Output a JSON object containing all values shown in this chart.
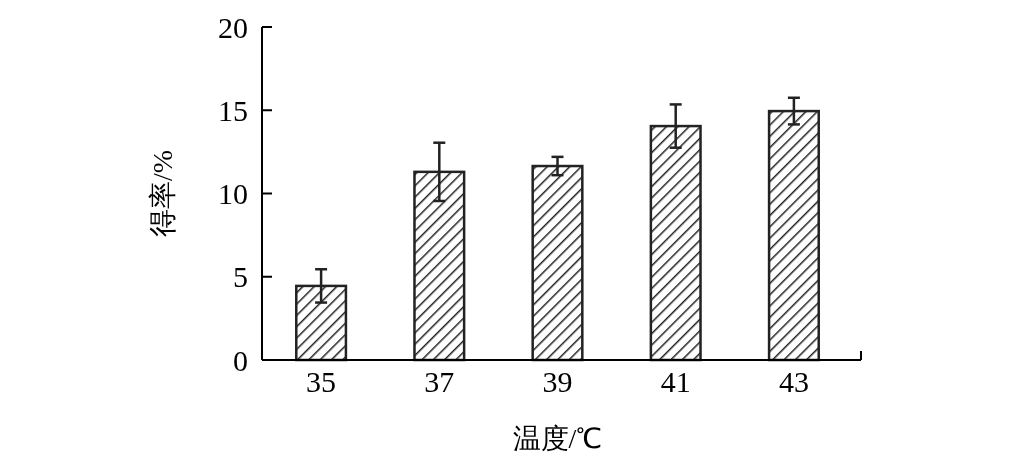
{
  "chart_data": {
    "type": "bar",
    "xlabel": "温度/℃",
    "ylabel": "得率/%",
    "categories": [
      "35",
      "37",
      "39",
      "41",
      "43"
    ],
    "values": [
      4.45,
      11.3,
      11.65,
      14.05,
      14.95
    ],
    "errors": [
      1.0,
      1.75,
      0.55,
      1.3,
      0.8
    ],
    "color": "#222222",
    "ylim": [
      0,
      20
    ],
    "yticks": [
      0,
      5,
      10,
      15,
      20
    ]
  }
}
